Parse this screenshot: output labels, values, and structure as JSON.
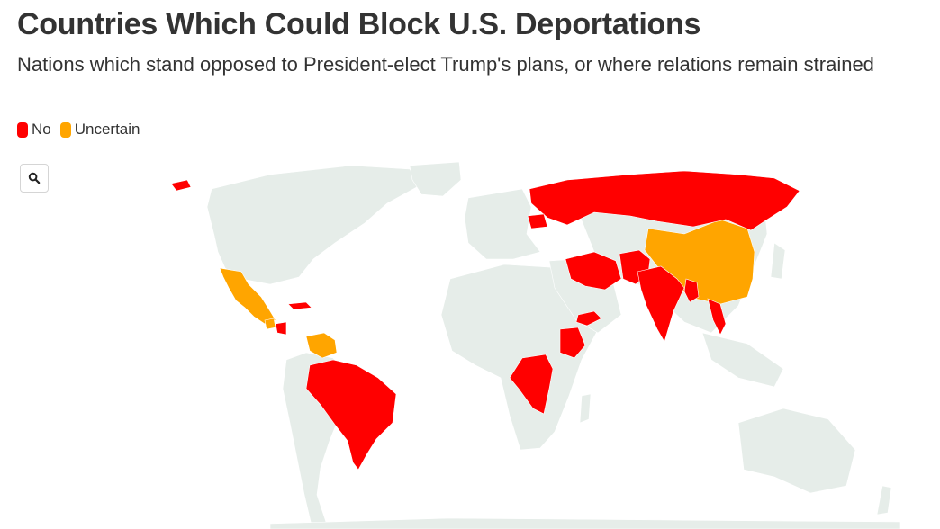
{
  "header": {
    "title": "Countries Which Could Block U.S. Deportations",
    "subtitle": "Nations which stand opposed to President-elect Trump's plans, or where relations remain strained"
  },
  "legend": {
    "items": [
      {
        "label": "No",
        "color": "#ff0000"
      },
      {
        "label": "Uncertain",
        "color": "#ffa500"
      }
    ]
  },
  "controls": {
    "zoom_icon": "search-icon"
  },
  "map": {
    "land_color": "#e6ede9",
    "categories": {
      "no": {
        "color": "#ff0000",
        "countries": [
          "Russia",
          "Belarus",
          "Nicaragua",
          "Brazil",
          "Iran",
          "Iraq",
          "Afghanistan",
          "Pakistan",
          "India",
          "Myanmar",
          "Laos",
          "Vietnam",
          "Yemen",
          "Ethiopia",
          "Democratic Republic of the Congo",
          "Cuba"
        ]
      },
      "uncertain": {
        "color": "#ffa500",
        "countries": [
          "Mexico",
          "Guatemala",
          "Venezuela",
          "China"
        ]
      }
    }
  }
}
